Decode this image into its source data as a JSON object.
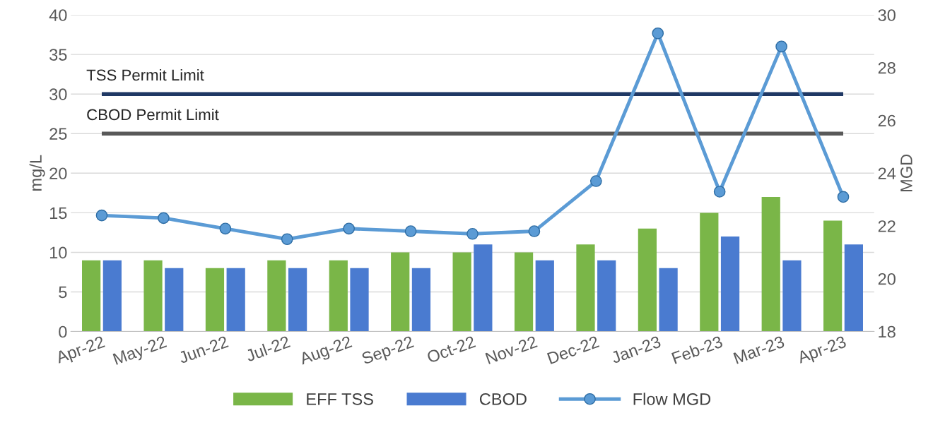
{
  "chart_data": {
    "type": "bar",
    "ylabel": "mg/L",
    "y2label": "MGD",
    "categories": [
      "Apr-22",
      "May-22",
      "Jun-22",
      "Jul-22",
      "Aug-22",
      "Sep-22",
      "Oct-22",
      "Nov-22",
      "Dec-22",
      "Jan-23",
      "Feb-23",
      "Mar-23",
      "Apr-23"
    ],
    "series": [
      {
        "name": "EFF TSS",
        "color": "#7ab648",
        "values": [
          9,
          9,
          8,
          9,
          9,
          10,
          10,
          10,
          11,
          13,
          15,
          17,
          14
        ]
      },
      {
        "name": "CBOD",
        "color": "#4a7bd0",
        "values": [
          9,
          8,
          8,
          8,
          8,
          8,
          11,
          9,
          9,
          8,
          12,
          9,
          11
        ]
      },
      {
        "name": "Flow MGD",
        "type": "line",
        "axis": "y2",
        "color": "#5b9bd5",
        "marker": "circle",
        "values": [
          22.4,
          22.3,
          21.9,
          21.5,
          21.9,
          21.8,
          21.7,
          21.8,
          23.7,
          29.3,
          23.3,
          28.8,
          23.1
        ]
      }
    ],
    "ylim": [
      0,
      40
    ],
    "yticks": [
      0,
      5,
      10,
      15,
      20,
      25,
      30,
      35,
      40
    ],
    "y2lim": [
      18,
      30
    ],
    "y2ticks": [
      18,
      20,
      22,
      24,
      26,
      28,
      30
    ],
    "ref_lines": [
      {
        "axis": "y",
        "value": 30,
        "label": "TSS Permit Limit",
        "color": "#1f3864"
      },
      {
        "axis": "y",
        "value": 25,
        "label": "CBOD Permit Limit",
        "color": "#595959"
      }
    ],
    "grid": "y",
    "legend": "bottom"
  }
}
